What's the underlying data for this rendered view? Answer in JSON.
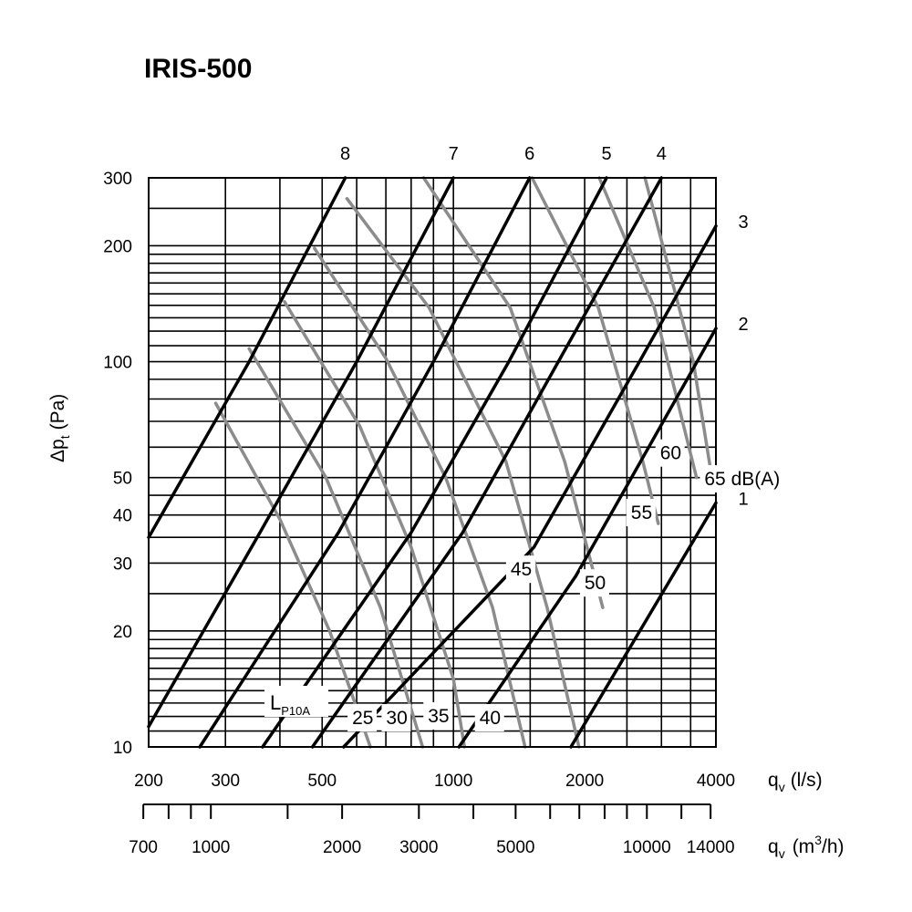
{
  "chart_data": {
    "type": "line",
    "title": "IRIS-500",
    "xscale": "log",
    "yscale": "log",
    "x_unit_primary": "l/s",
    "x_unit_secondary": "m3/h",
    "xlim": [
      200,
      4000
    ],
    "ylim": [
      10,
      300
    ],
    "grid": true,
    "ylabel": {
      "main": "Δp",
      "sub": "t",
      "unit": "(Pa)"
    },
    "xlabel_primary": {
      "main": "q",
      "sub": "v",
      "unit": "(l/s)"
    },
    "xlabel_secondary": {
      "main": "q",
      "sub": "v",
      "unit_pre": "(m",
      "unit_sup": "3",
      "unit_post": "/h)"
    },
    "y_ticks": [
      {
        "value": 10,
        "label": "10"
      },
      {
        "value": 20,
        "label": "20"
      },
      {
        "value": 30,
        "label": "30"
      },
      {
        "value": 40,
        "label": "40"
      },
      {
        "value": 50,
        "label": "50"
      },
      {
        "value": 100,
        "label": "100"
      },
      {
        "value": 200,
        "label": "200"
      },
      {
        "value": 300,
        "label": "300"
      }
    ],
    "y_grid": [
      10,
      11,
      12,
      13,
      14,
      15,
      16,
      17,
      18,
      19,
      20,
      25,
      30,
      35,
      40,
      45,
      50,
      60,
      70,
      80,
      90,
      100,
      110,
      120,
      130,
      140,
      150,
      160,
      170,
      180,
      190,
      200,
      250,
      300
    ],
    "x_grid": [
      200,
      300,
      400,
      500,
      600,
      700,
      800,
      900,
      1000,
      1500,
      2000,
      2500,
      3000,
      3500,
      4000
    ],
    "x_ticks_primary": [
      {
        "value": 200,
        "label": "200"
      },
      {
        "value": 300,
        "label": "300"
      },
      {
        "value": 500,
        "label": "500"
      },
      {
        "value": 1000,
        "label": "1000"
      },
      {
        "value": 2000,
        "label": "2000"
      },
      {
        "value": 4000,
        "label": "4000"
      }
    ],
    "x_ticks_secondary": [
      {
        "value": 700,
        "label": "700"
      },
      {
        "value": 1000,
        "label": "1000"
      },
      {
        "value": 2000,
        "label": "2000"
      },
      {
        "value": 3000,
        "label": "3000"
      },
      {
        "value": 5000,
        "label": "5000"
      },
      {
        "value": 10000,
        "label": "10000"
      },
      {
        "value": 14000,
        "label": "14000"
      }
    ],
    "x_minor_secondary": [
      700,
      800,
      900,
      1000,
      1500,
      2000,
      3000,
      4000,
      5000,
      6000,
      7000,
      8000,
      9000,
      10000,
      12000,
      14000
    ],
    "settings": [
      {
        "name": "1",
        "points": [
          [
            4000,
            43
          ],
          [
            1860,
            10
          ]
        ]
      },
      {
        "name": "2",
        "points": [
          [
            4000,
            122
          ],
          [
            1910,
            27.8
          ],
          [
            1030,
            10
          ]
        ]
      },
      {
        "name": "3",
        "points": [
          [
            4000,
            225
          ],
          [
            2670,
            100
          ],
          [
            1530,
            33
          ],
          [
            560,
            10
          ]
        ]
      },
      {
        "name": "4",
        "points": [
          [
            3000,
            300
          ],
          [
            1740,
            100
          ],
          [
            1050,
            36
          ],
          [
            475,
            10
          ]
        ]
      },
      {
        "name": "5",
        "points": [
          [
            2245,
            300
          ],
          [
            1340,
            100
          ],
          [
            800,
            36
          ],
          [
            365,
            10
          ]
        ]
      },
      {
        "name": "6",
        "points": [
          [
            1495,
            300
          ],
          [
            900,
            100
          ],
          [
            545,
            36
          ],
          [
            262,
            10
          ]
        ]
      },
      {
        "name": "7",
        "points": [
          [
            1000,
            300
          ],
          [
            600,
            100
          ],
          [
            360,
            36
          ],
          [
            200,
            11.3
          ]
        ]
      },
      {
        "name": "8",
        "points": [
          [
            565,
            300
          ],
          [
            340,
            100
          ],
          [
            200,
            35
          ]
        ]
      }
    ],
    "sound_levels": [
      {
        "name": "25",
        "points": [
          [
            285,
            78
          ],
          [
            400,
            39
          ],
          [
            520,
            20
          ],
          [
            645,
            10
          ]
        ]
      },
      {
        "name": "30",
        "points": [
          [
            340,
            108
          ],
          [
            510,
            50
          ],
          [
            680,
            23
          ],
          [
            850,
            10
          ]
        ]
      },
      {
        "name": "35",
        "points": [
          [
            410,
            143
          ],
          [
            610,
            68
          ],
          [
            800,
            33
          ],
          [
            1000,
            15
          ],
          [
            1060,
            10
          ]
        ]
      },
      {
        "name": "40",
        "points": [
          [
            480,
            197
          ],
          [
            700,
            102
          ],
          [
            960,
            50
          ],
          [
            1230,
            23
          ],
          [
            1460,
            10
          ]
        ]
      },
      {
        "name": "45",
        "points": [
          [
            570,
            265
          ],
          [
            880,
            138
          ],
          [
            1320,
            55
          ],
          [
            1640,
            23
          ],
          [
            1940,
            10
          ]
        ]
      },
      {
        "name": "50",
        "points": [
          [
            855,
            300
          ],
          [
            1350,
            138
          ],
          [
            1800,
            55
          ],
          [
            2200,
            23
          ]
        ]
      },
      {
        "name": "55",
        "points": [
          [
            1515,
            300
          ],
          [
            2150,
            138
          ],
          [
            2720,
            55
          ],
          [
            2950,
            38
          ]
        ]
      },
      {
        "name": "60",
        "points": [
          [
            2160,
            300
          ],
          [
            2890,
            138
          ],
          [
            3610,
            50
          ]
        ]
      },
      {
        "name": "65",
        "points": [
          [
            2750,
            300
          ],
          [
            3550,
            100
          ],
          [
            3950,
            47
          ]
        ]
      }
    ],
    "setting_labels": [
      "1",
      "2",
      "3",
      "4",
      "5",
      "6",
      "7",
      "8"
    ],
    "sound_labels": [
      {
        "name": "25",
        "text": "25"
      },
      {
        "name": "30",
        "text": "30"
      },
      {
        "name": "35",
        "text": "35"
      },
      {
        "name": "40",
        "text": "40"
      },
      {
        "name": "45",
        "text": "45"
      },
      {
        "name": "50",
        "text": "50"
      },
      {
        "name": "55",
        "text": "55"
      },
      {
        "name": "60",
        "text": "60"
      },
      {
        "name": "65",
        "text": "65 dB(A)"
      }
    ],
    "lp_label": {
      "main": "L",
      "sub": "P10A"
    },
    "colors": {
      "setting_line": "#000000",
      "sound_line": "#8c8c8c",
      "grid": "#000000"
    }
  }
}
